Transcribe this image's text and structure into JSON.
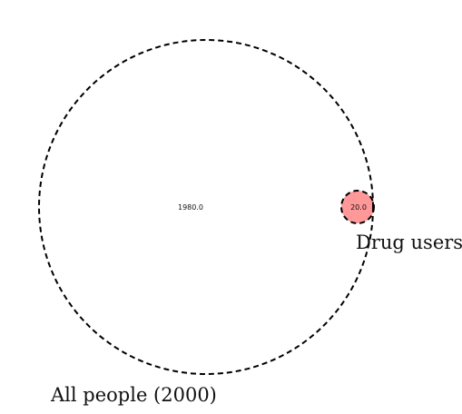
{
  "diagram": {
    "type": "venn2",
    "sets": [
      {
        "name": "All people (2000)",
        "outline": "#000000",
        "outline_style": "dashed"
      },
      {
        "name": "Drug users",
        "outline": "#000000",
        "outline_style": "dashed"
      }
    ],
    "regions": {
      "only_all_people": "1980.0",
      "intersection": "20.0"
    },
    "colors": {
      "intersection_fill": "#ff9999",
      "background": "#ffffff"
    }
  }
}
